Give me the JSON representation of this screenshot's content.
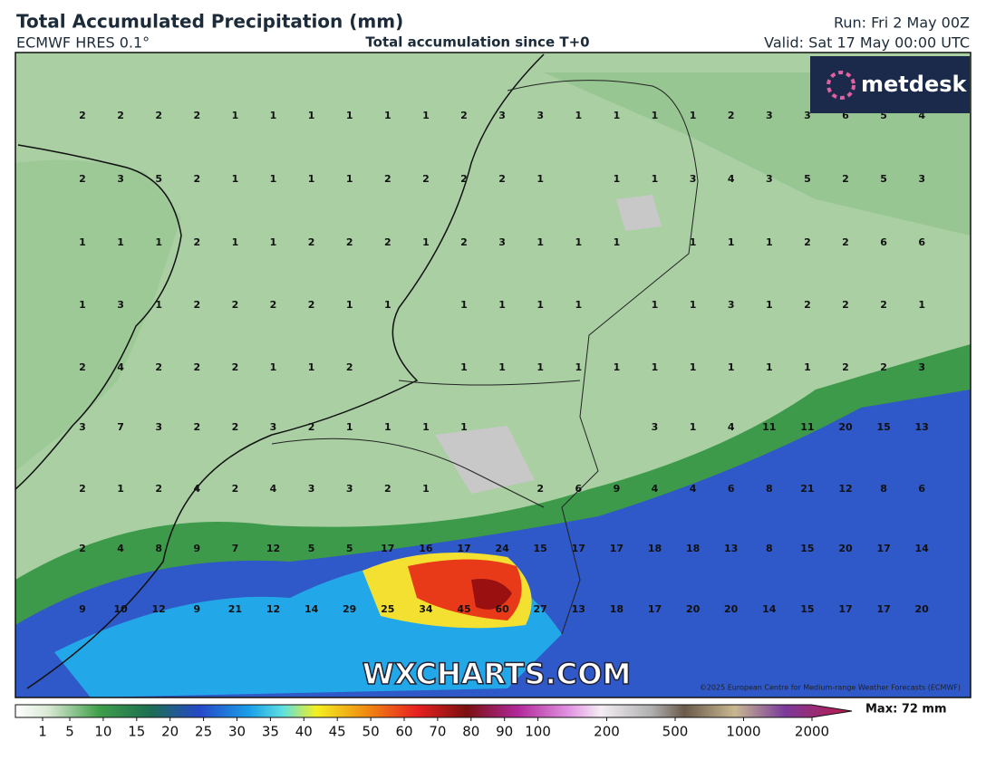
{
  "header": {
    "title": "Total Accumulated Precipitation (mm)",
    "model": "ECMWF HRES 0.1°",
    "subtitle": "Total accumulation since T+0",
    "run": "Run: Fri 2 May 00Z",
    "valid": "Valid: Sat 17 May 00:00 UTC"
  },
  "map": {
    "logo": "metdesk",
    "watermark": "WXCHARTS.COM",
    "copyright": "©2025 European Centre for Medium-range Weather Forecasts (ECMWF)",
    "grid_values": [
      [
        2,
        2,
        2,
        2,
        1,
        1,
        1,
        1,
        1,
        1,
        2,
        3,
        3,
        1,
        1,
        1,
        1,
        2,
        3,
        3,
        6,
        5,
        4
      ],
      [
        2,
        3,
        5,
        2,
        1,
        1,
        1,
        1,
        2,
        2,
        2,
        2,
        1,
        null,
        1,
        1,
        3,
        4,
        3,
        5,
        2,
        5,
        3
      ],
      [
        1,
        1,
        1,
        2,
        1,
        1,
        2,
        2,
        2,
        1,
        2,
        3,
        1,
        1,
        1,
        null,
        1,
        1,
        1,
        2,
        2,
        6,
        6
      ],
      [
        1,
        3,
        1,
        2,
        2,
        2,
        2,
        1,
        1,
        null,
        1,
        1,
        1,
        1,
        null,
        1,
        1,
        3,
        1,
        2,
        2,
        2,
        1
      ],
      [
        2,
        4,
        2,
        2,
        2,
        1,
        1,
        2,
        null,
        null,
        1,
        1,
        1,
        1,
        1,
        1,
        1,
        1,
        1,
        1,
        2,
        2,
        3
      ],
      [
        3,
        7,
        3,
        2,
        2,
        3,
        2,
        1,
        1,
        1,
        1,
        null,
        null,
        null,
        null,
        3,
        1,
        4,
        11,
        11,
        20,
        15,
        13
      ],
      [
        2,
        1,
        2,
        4,
        2,
        4,
        3,
        3,
        2,
        1,
        null,
        null,
        2,
        6,
        9,
        4,
        4,
        6,
        8,
        21,
        12,
        8,
        6
      ],
      [
        2,
        4,
        8,
        9,
        7,
        12,
        5,
        5,
        17,
        16,
        17,
        24,
        15,
        17,
        17,
        18,
        18,
        13,
        8,
        15,
        20,
        17,
        14
      ],
      [
        9,
        10,
        12,
        9,
        21,
        12,
        14,
        29,
        25,
        34,
        45,
        60,
        27,
        13,
        18,
        17,
        20,
        20,
        14,
        15,
        17,
        17,
        20
      ]
    ]
  },
  "colorbar": {
    "ticks": [
      1,
      5,
      10,
      15,
      20,
      25,
      30,
      35,
      40,
      45,
      50,
      60,
      70,
      80,
      90,
      100,
      200,
      500,
      1000,
      2000
    ],
    "max_label": "Max: 72 mm"
  }
}
